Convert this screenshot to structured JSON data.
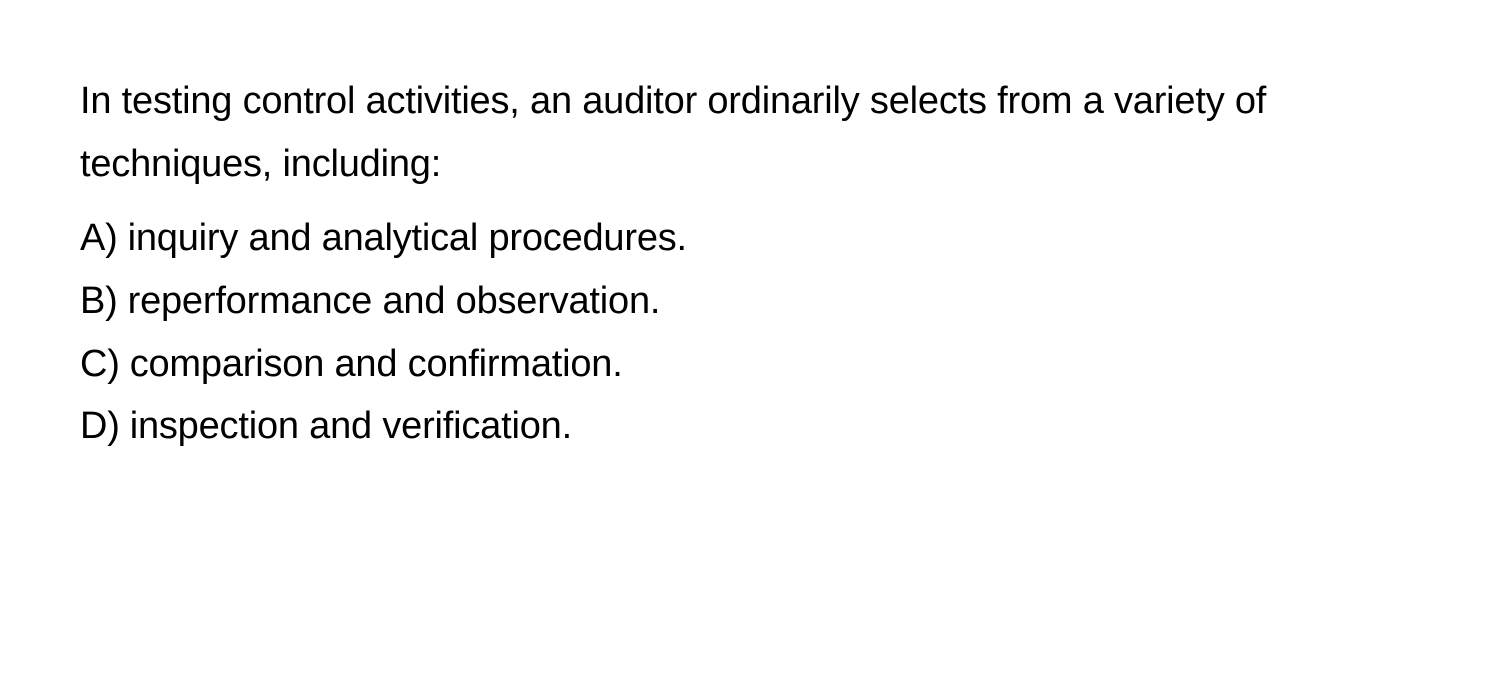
{
  "question": {
    "stem": "In testing control activities, an auditor ordinarily selects from a variety of techniques, including:",
    "options": [
      {
        "label": "A)",
        "text": "inquiry and analytical procedures."
      },
      {
        "label": "B)",
        "text": "reperformance and observation."
      },
      {
        "label": "C)",
        "text": "comparison and confirmation."
      },
      {
        "label": "D)",
        "text": "inspection and verification."
      }
    ]
  },
  "style": {
    "background_color": "#ffffff",
    "text_color": "#000000",
    "font_size_pt": 29,
    "font_family": "-apple-system",
    "line_height": 1.65
  }
}
